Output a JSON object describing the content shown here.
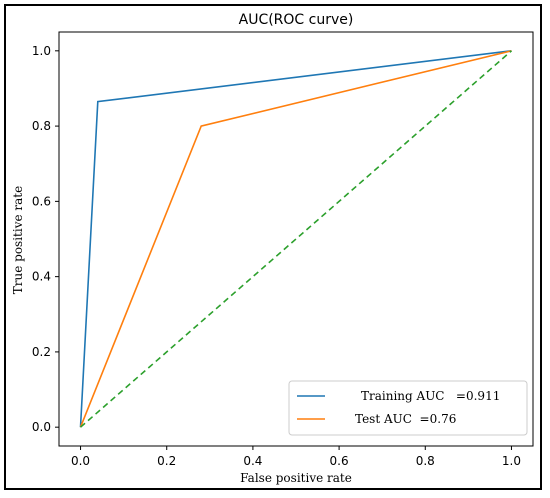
{
  "chart_data": {
    "type": "line",
    "title": "AUC(ROC curve)",
    "xlabel": "False positive rate",
    "ylabel": "True positive rate",
    "xlim": [
      -0.05,
      1.05
    ],
    "ylim": [
      -0.05,
      1.05
    ],
    "xticks": [
      "0.0",
      "0.2",
      "0.4",
      "0.6",
      "0.8",
      "1.0"
    ],
    "yticks": [
      "0.0",
      "0.2",
      "0.4",
      "0.6",
      "0.8",
      "1.0"
    ],
    "grid": false,
    "legend_position": "lower-right",
    "series": [
      {
        "name": "Training AUC   =0.911",
        "color": "#1f77b4",
        "style": "solid",
        "x": [
          0.0,
          0.04,
          1.0
        ],
        "y": [
          0.0,
          0.865,
          1.0
        ]
      },
      {
        "name": "Test AUC  =0.76",
        "color": "#ff7f0e",
        "style": "solid",
        "x": [
          0.0,
          0.28,
          1.0
        ],
        "y": [
          0.0,
          0.8,
          1.0
        ]
      },
      {
        "color": "#2ca02c",
        "style": "dashed",
        "x": [
          0.0,
          1.0
        ],
        "y": [
          0.0,
          1.0
        ]
      }
    ]
  }
}
